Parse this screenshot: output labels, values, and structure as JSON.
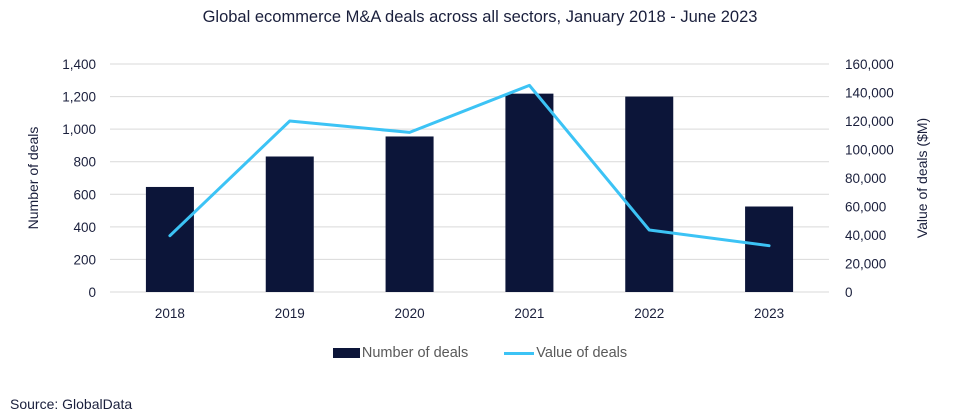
{
  "chart_data": {
    "type": "bar",
    "title": "Global ecommerce M&A deals across all sectors, January 2018 - June 2023",
    "categories": [
      "2018",
      "2019",
      "2020",
      "2021",
      "2022",
      "2023"
    ],
    "series": [
      {
        "name": "Number of deals",
        "type": "bar",
        "axis": "left",
        "color": "#0c1539",
        "values": [
          645,
          832,
          955,
          1218,
          1200,
          525
        ]
      },
      {
        "name": "Value of deals",
        "type": "line",
        "axis": "right",
        "color": "#3cc3f5",
        "values": [
          39500,
          120000,
          112000,
          145000,
          43500,
          32500
        ]
      }
    ],
    "xlabel": "",
    "ylabel": "Number of deals",
    "ylabel_right": "Value of deals ($M)",
    "ylim": [
      0,
      1400
    ],
    "ylim_right": [
      0,
      160000
    ],
    "yticks": [
      "0",
      "200",
      "400",
      "600",
      "800",
      "1,000",
      "1,200",
      "1,400"
    ],
    "yticks_right": [
      "0",
      "20,000",
      "40,000",
      "60,000",
      "80,000",
      "100,000",
      "120,000",
      "140,000",
      "160,000"
    ],
    "grid": true,
    "legend_position": "bottom"
  },
  "source": "Source: GlobalData"
}
